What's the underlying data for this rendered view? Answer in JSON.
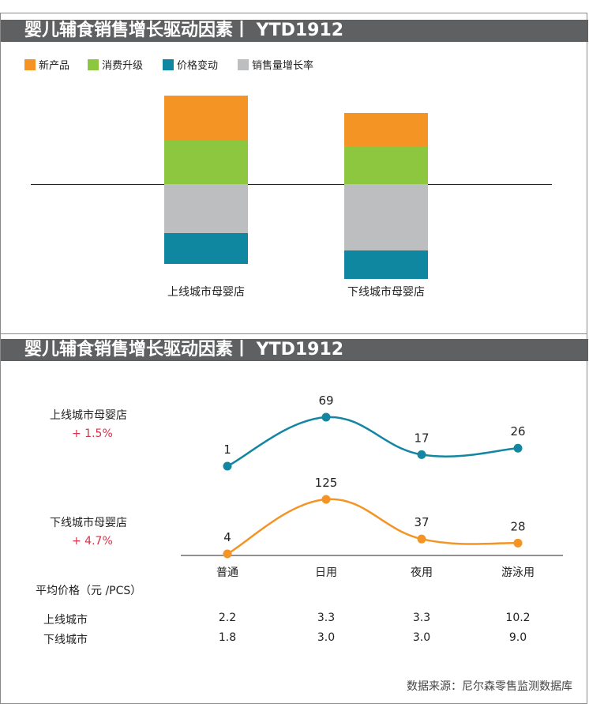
{
  "colors": {
    "new_product": "#f39425",
    "upgrade": "#8dc63f",
    "price": "#0f87a1",
    "volume": "#bcbec0",
    "line_top": "#1486a0",
    "line_bottom": "#f39425",
    "banner": "#5f6062",
    "pct_text": "#d6304a"
  },
  "panel1": {
    "title": "婴儿辅食销售增长驱动因素丨 YTD1912",
    "legend": [
      {
        "label": "新产品",
        "color_key": "new_product"
      },
      {
        "label": "消费升级",
        "color_key": "upgrade"
      },
      {
        "label": "价格变动",
        "color_key": "price"
      },
      {
        "label": "销售量增长率",
        "color_key": "volume"
      }
    ]
  },
  "panel2": {
    "title": "婴儿辅食销售增长驱动因素丨 YTD1912",
    "top_series_label": "上线城市母婴店",
    "top_series_pct": "+ 1.5%",
    "bottom_series_label": "下线城市母婴店",
    "bottom_series_pct": "+ 4.7%",
    "price_header": "平均价格（元 /PCS）",
    "price_rows": [
      {
        "label": "上线城市",
        "values": [
          "2.2",
          "3.3",
          "3.3",
          "10.2"
        ]
      },
      {
        "label": "下线城市",
        "values": [
          "1.8",
          "3.0",
          "3.0",
          "9.0"
        ]
      }
    ]
  },
  "source": "数据来源：尼尔森零售监测数据库",
  "chart_data": [
    {
      "type": "bar",
      "stacked": true,
      "title": "婴儿辅食销售增长驱动因素丨 YTD1912",
      "categories": [
        "上线城市母婴店",
        "下线城市母婴店"
      ],
      "series": [
        {
          "name": "新产品",
          "values": [
            1.0,
            0.75
          ]
        },
        {
          "name": "消费升级",
          "values": [
            1.0,
            0.85
          ]
        },
        {
          "name": "销售量增长率",
          "values": [
            -1.1,
            -1.5
          ]
        },
        {
          "name": "价格变动",
          "values": [
            -0.7,
            -0.65
          ]
        }
      ],
      "value_axis_labels": "none",
      "legend_position": "top-left",
      "grid": false
    },
    {
      "type": "line",
      "title": "婴儿辅食销售增长驱动因素丨 YTD1912",
      "categories": [
        "普通",
        "日用",
        "夜用",
        "游泳用"
      ],
      "series": [
        {
          "name": "上线城市母婴店",
          "values": [
            1,
            69,
            17,
            26
          ]
        },
        {
          "name": "下线城市母婴店",
          "values": [
            4,
            125,
            37,
            28
          ]
        }
      ],
      "smooth": true,
      "data_labels": true,
      "grid": false
    }
  ]
}
